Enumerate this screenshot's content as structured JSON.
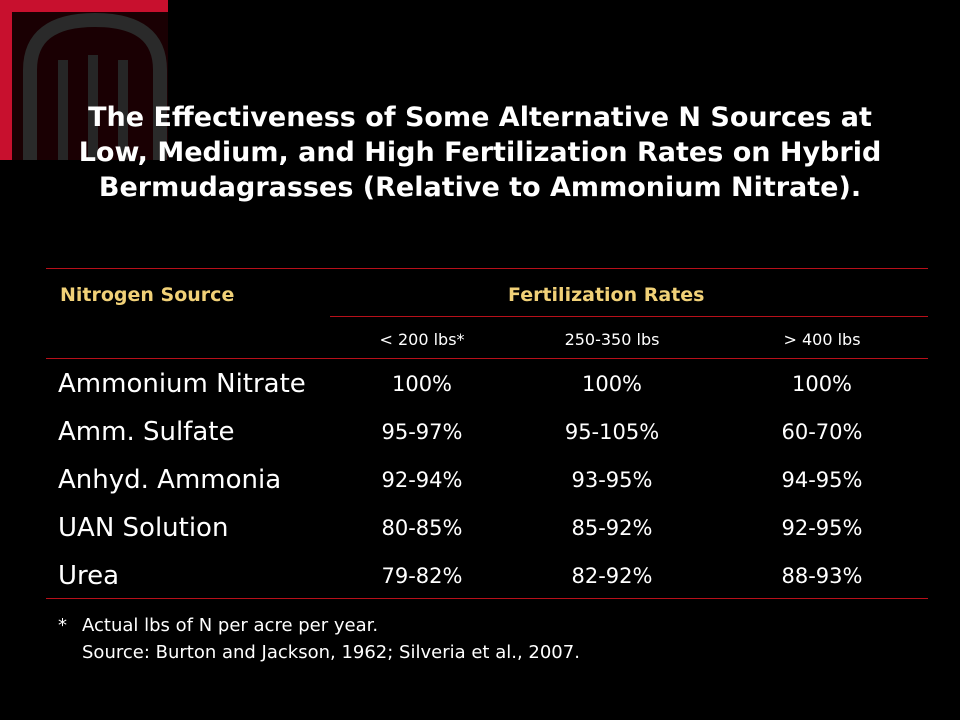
{
  "title_lines": [
    "The Effectiveness of Some Alternative N Sources at",
    "Low, Medium, and High Fertilization Rates on Hybrid",
    "Bermudagrasses (Relative to Ammonium Nitrate)."
  ],
  "table": {
    "header_source": "Nitrogen Source",
    "header_rates": "Fertilization Rates",
    "rate_columns": [
      "< 200 lbs*",
      "250-350 lbs",
      "> 400 lbs"
    ],
    "rows": [
      {
        "source": "Ammonium Nitrate",
        "values": [
          "100%",
          "100%",
          "100%"
        ]
      },
      {
        "source": "Amm. Sulfate",
        "values": [
          "95-97%",
          "95-105%",
          "60-70%"
        ]
      },
      {
        "source": "Anhyd. Ammonia",
        "values": [
          "92-94%",
          "93-95%",
          "94-95%"
        ]
      },
      {
        "source": "UAN Solution",
        "values": [
          "80-85%",
          "85-92%",
          "92-95%"
        ]
      },
      {
        "source": "Urea",
        "values": [
          "79-82%",
          "82-92%",
          "88-93%"
        ]
      }
    ]
  },
  "footnote": {
    "marker": "*",
    "line1": "Actual lbs of N per acre per year.",
    "line2": "Source: Burton and Jackson, 1962; Silveria et al., 2007."
  },
  "colors": {
    "background": "#000000",
    "accent_rule": "#b8101a",
    "header_text": "#f1d178",
    "logo_red": "#c8102e"
  }
}
